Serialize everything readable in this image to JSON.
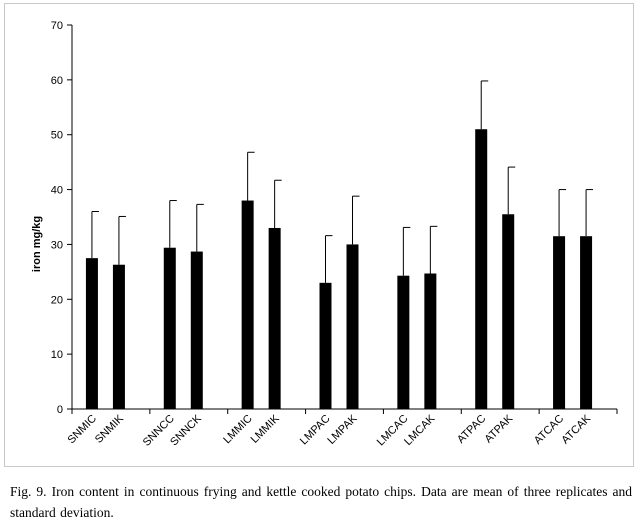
{
  "chart_data": {
    "type": "bar",
    "title": "",
    "xlabel": "",
    "ylabel": "iron mg/kg",
    "ylim": [
      0,
      70
    ],
    "yticks": [
      0,
      10,
      20,
      30,
      40,
      50,
      60,
      70
    ],
    "grid": false,
    "legend": "none",
    "bar_color": "#000000",
    "error_bars": true,
    "groups": [
      {
        "categories": [
          "SNMIC",
          "SNMIK"
        ],
        "values": [
          27.5,
          26.3
        ],
        "errors": [
          8.5,
          8.8
        ]
      },
      {
        "categories": [
          "SNNCC",
          "SNNCK"
        ],
        "values": [
          29.4,
          28.7
        ],
        "errors": [
          8.6,
          8.6
        ]
      },
      {
        "categories": [
          "LMMIC",
          "LMMIK"
        ],
        "values": [
          38.0,
          33.0
        ],
        "errors": [
          8.8,
          8.7
        ]
      },
      {
        "categories": [
          "LMPAC",
          "LMPAK"
        ],
        "values": [
          23.0,
          30.0
        ],
        "errors": [
          8.6,
          8.8
        ]
      },
      {
        "categories": [
          "LMCAC",
          "LMCAK"
        ],
        "values": [
          24.3,
          24.7
        ],
        "errors": [
          8.8,
          8.6
        ]
      },
      {
        "categories": [
          "ATPAC",
          "ATPAK"
        ],
        "values": [
          51.0,
          35.5
        ],
        "errors": [
          8.8,
          8.6
        ]
      },
      {
        "categories": [
          "ATCAC",
          "ATCAK"
        ],
        "values": [
          31.5,
          31.5
        ],
        "errors": [
          8.5,
          8.5
        ]
      }
    ]
  },
  "caption": "Fig. 9. Iron content in continuous frying and kettle cooked potato chips. Data are mean of three replicates and standard deviation."
}
